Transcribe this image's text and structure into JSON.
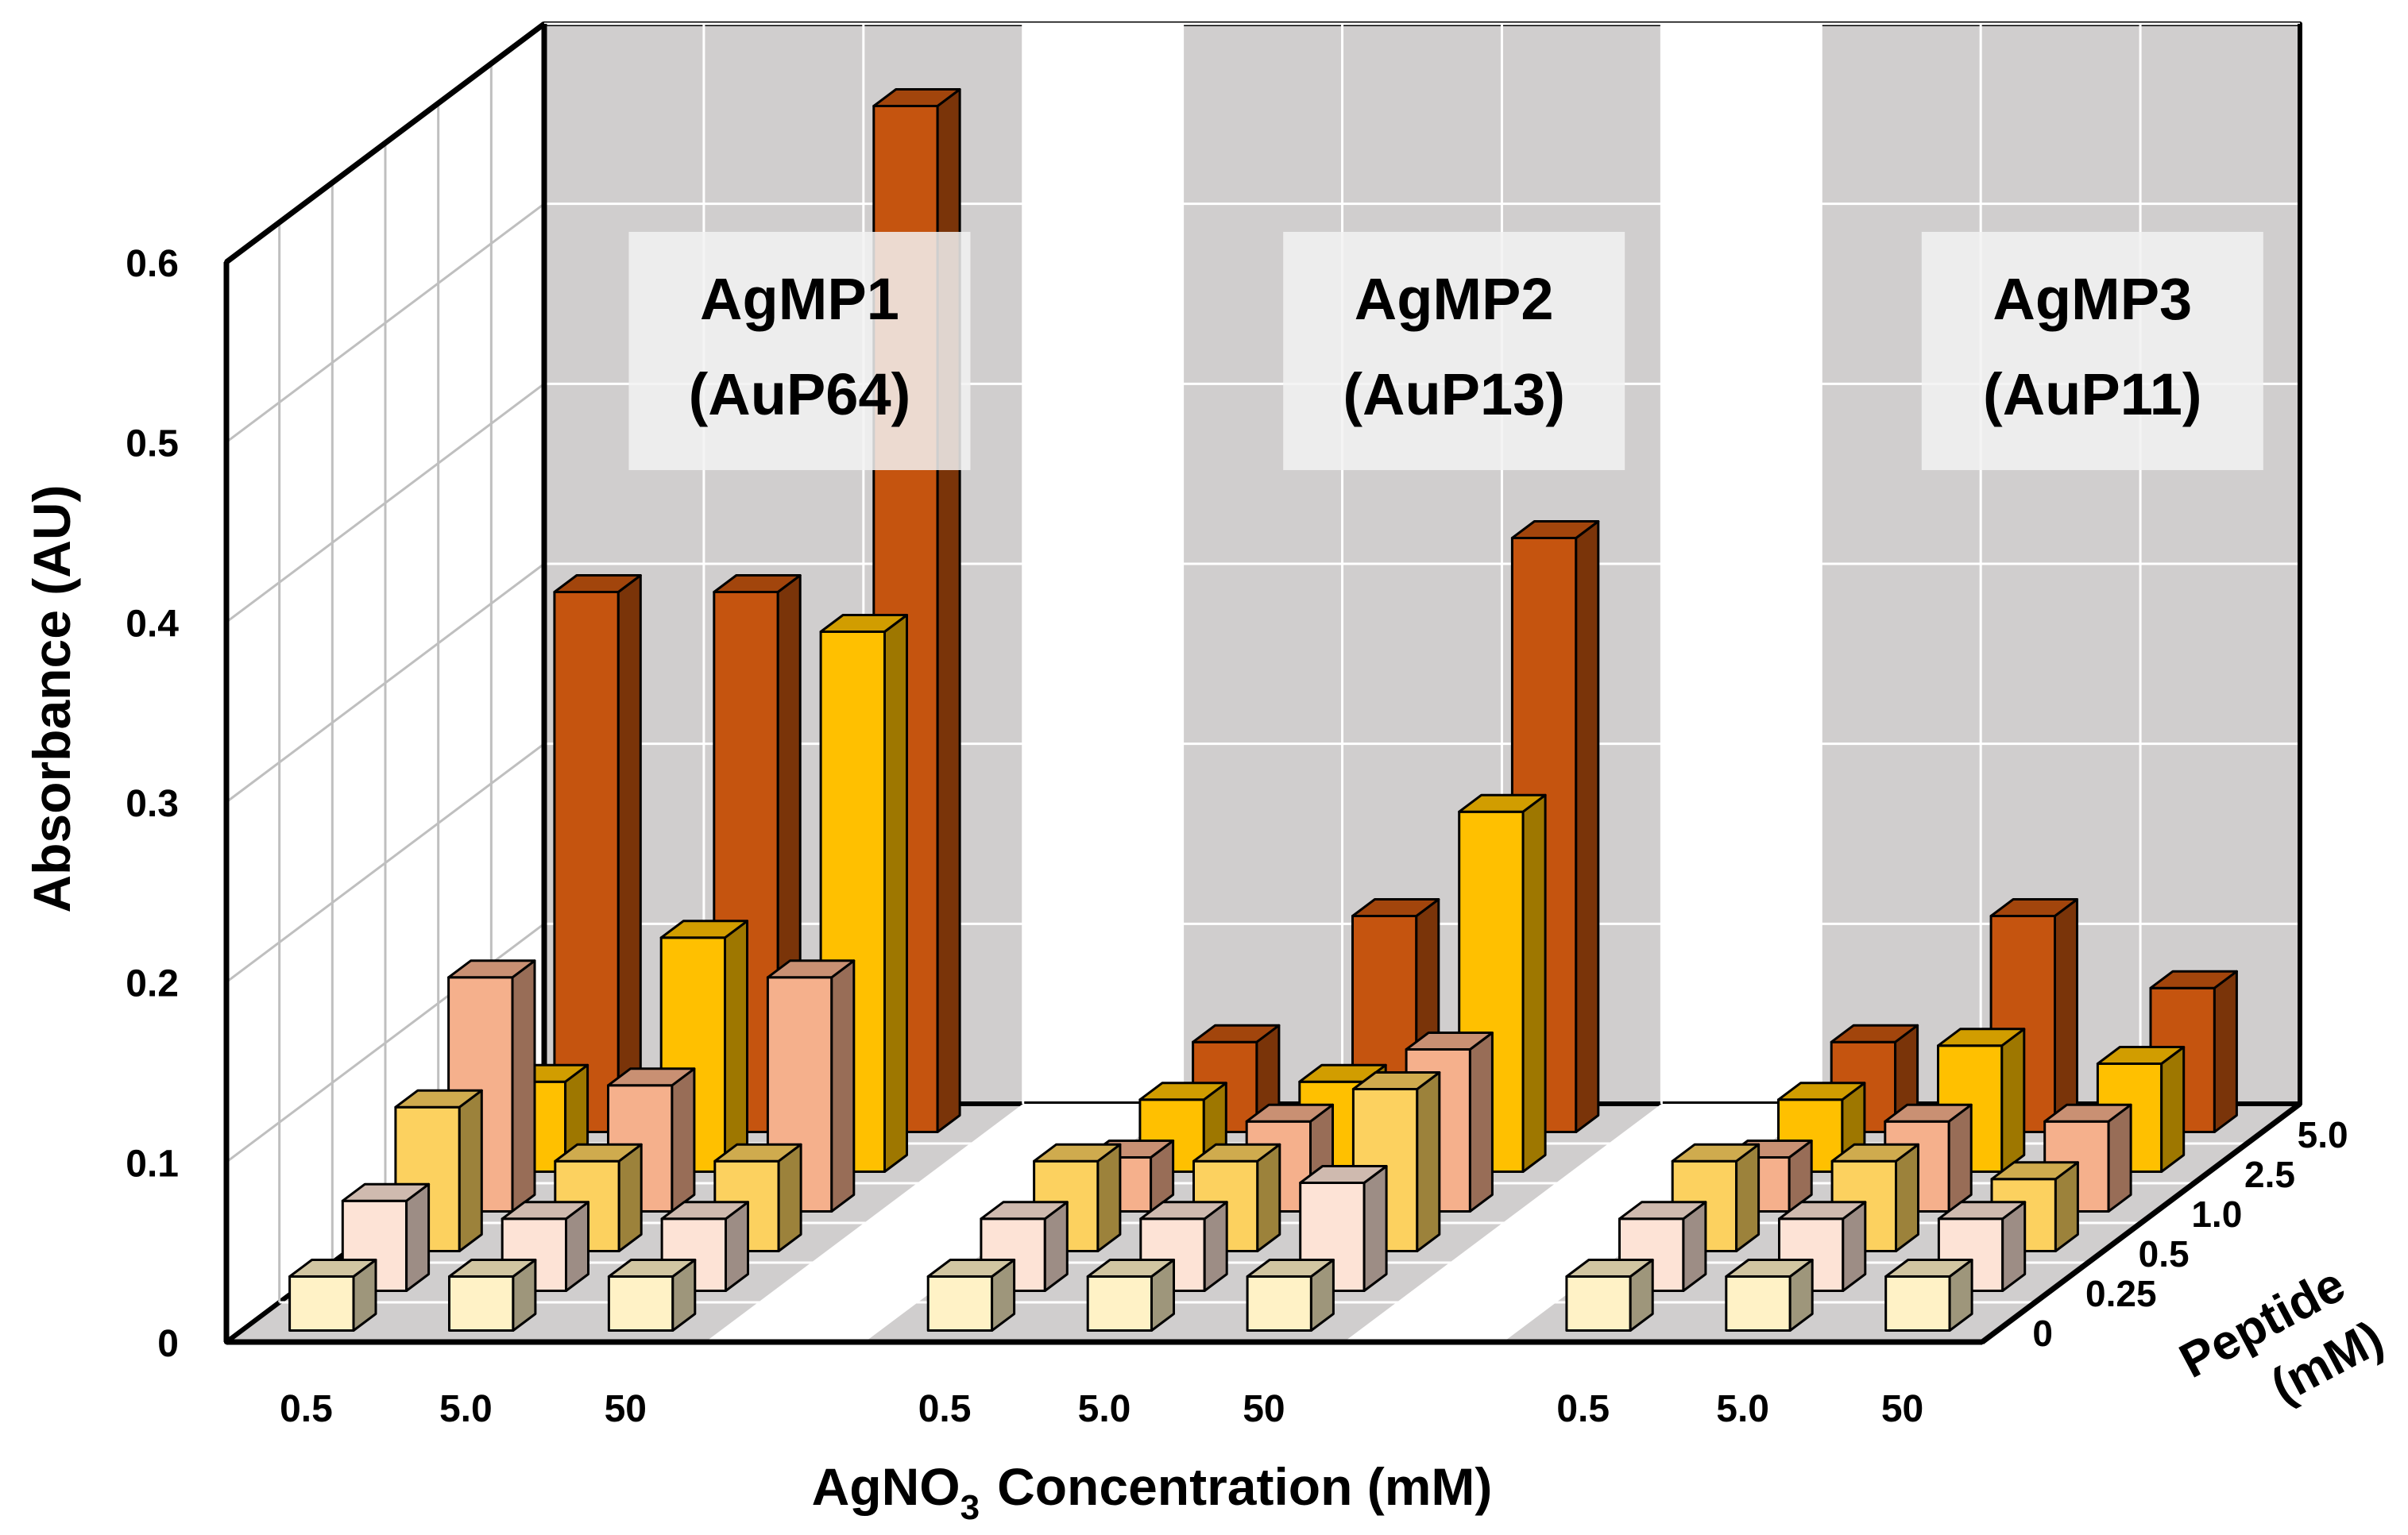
{
  "chart_data": {
    "type": "bar3d",
    "ylabel": "Absorbance (AU)",
    "xlabel_main": "AgNO",
    "xlabel_sub": "3",
    "xlabel_rest": "Concentration (mM)",
    "zlabel_line1": "Peptide",
    "zlabel_line2": "(mM)",
    "yticks": [
      "0",
      "0.1",
      "0.2",
      "0.3",
      "0.4",
      "0.5",
      "0.6"
    ],
    "ylim": [
      0,
      0.6
    ],
    "x_categories": [
      "0.5",
      "5.0",
      "50"
    ],
    "z_categories": [
      "0",
      "0.25",
      "0.5",
      "1.0",
      "2.5",
      "5.0"
    ],
    "panels": [
      {
        "name_line1": "AgMP1",
        "name_line2": "(AuP64)",
        "values": {
          "0.5": [
            0.03,
            0.05,
            0.08,
            0.13,
            0.05,
            0.3
          ],
          "5.0": [
            0.03,
            0.04,
            0.05,
            0.07,
            0.13,
            0.3
          ],
          "50": [
            0.03,
            0.04,
            0.05,
            0.13,
            0.3,
            0.57
          ]
        }
      },
      {
        "name_line1": "AgMP2",
        "name_line2": "(AuP13)",
        "values": {
          "0.5": [
            0.03,
            0.04,
            0.05,
            0.03,
            0.04,
            0.05
          ],
          "5.0": [
            0.03,
            0.04,
            0.05,
            0.05,
            0.05,
            0.12
          ],
          "50": [
            0.03,
            0.06,
            0.09,
            0.09,
            0.2,
            0.33
          ]
        }
      },
      {
        "name_line1": "AgMP3",
        "name_line2": "(AuP11)",
        "values": {
          "0.5": [
            0.03,
            0.04,
            0.05,
            0.03,
            0.04,
            0.05
          ],
          "5.0": [
            0.03,
            0.04,
            0.05,
            0.05,
            0.07,
            0.12
          ],
          "50": [
            0.03,
            0.04,
            0.04,
            0.05,
            0.06,
            0.08
          ]
        }
      }
    ],
    "series_colors": [
      "#fff2c6",
      "#fde3d6",
      "#fcd15f",
      "#f5b08c",
      "#ffc000",
      "#c5540f"
    ],
    "grid": true
  }
}
